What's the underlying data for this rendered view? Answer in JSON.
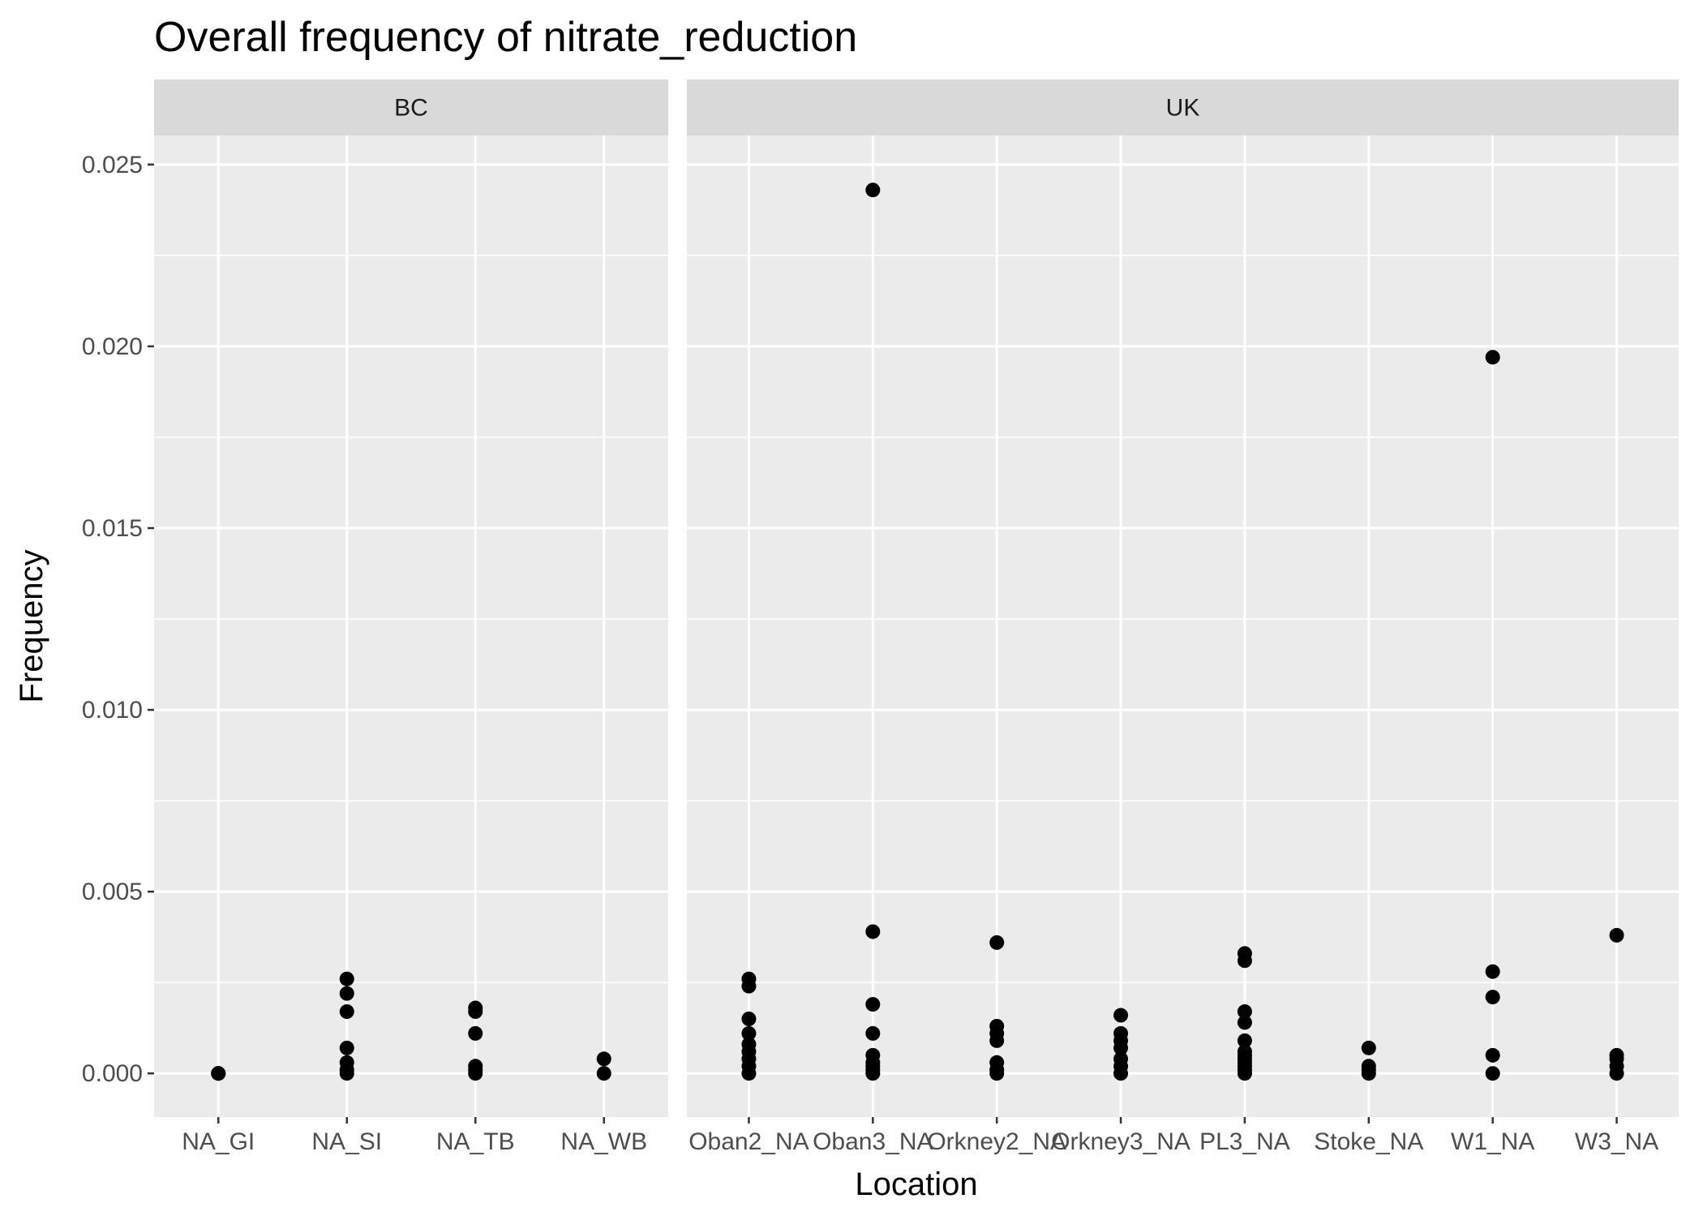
{
  "chart_data": {
    "type": "scatter",
    "title": "Overall frequency of nitrate_reduction",
    "xlabel": "Location",
    "ylabel": "Frequency",
    "ylim": [
      -0.0012,
      0.0258
    ],
    "y_ticks": [
      "0.000",
      "0.005",
      "0.010",
      "0.015",
      "0.020",
      "0.025"
    ],
    "grid": true,
    "facets": [
      {
        "name": "BC",
        "categories": [
          "NA_GI",
          "NA_SI",
          "NA_TB",
          "NA_WB"
        ],
        "points": {
          "NA_GI": [
            0.0,
            0.0,
            0.0
          ],
          "NA_SI": [
            0.0,
            0.0001,
            0.0003,
            0.0007,
            0.0017,
            0.0022,
            0.0026
          ],
          "NA_TB": [
            0.0,
            0.0001,
            0.0002,
            0.0011,
            0.0017,
            0.0018
          ],
          "NA_WB": [
            0.0,
            0.0004
          ]
        }
      },
      {
        "name": "UK",
        "categories": [
          "Oban2_NA",
          "Oban3_NA",
          "Orkney2_NA",
          "Orkney3_NA",
          "PL3_NA",
          "Stoke_NA",
          "W1_NA",
          "W3_NA"
        ],
        "points": {
          "Oban2_NA": [
            0.0,
            0.0002,
            0.0004,
            0.0006,
            0.0008,
            0.0011,
            0.0015,
            0.0024,
            0.0026
          ],
          "Oban3_NA": [
            0.0,
            0.0001,
            0.0002,
            0.0003,
            0.0005,
            0.0011,
            0.0019,
            0.0039,
            0.0243
          ],
          "Orkney2_NA": [
            0.0,
            0.0001,
            0.0003,
            0.0009,
            0.0011,
            0.0013,
            0.0036
          ],
          "Orkney3_NA": [
            0.0,
            0.0002,
            0.0004,
            0.0007,
            0.0009,
            0.0011,
            0.0016
          ],
          "PL3_NA": [
            0.0,
            0.0001,
            0.0002,
            0.0003,
            0.0004,
            0.0005,
            0.0006,
            0.0009,
            0.0014,
            0.0017,
            0.0031,
            0.0033
          ],
          "Stoke_NA": [
            0.0,
            0.0001,
            0.0002,
            0.0007
          ],
          "W1_NA": [
            0.0,
            0.0005,
            0.0021,
            0.0028,
            0.0197
          ],
          "W3_NA": [
            0.0,
            0.0002,
            0.0004,
            0.0005,
            0.0038
          ]
        }
      }
    ]
  },
  "colors": {
    "panel_background": "#ebebeb",
    "strip_background": "#d9d9d9",
    "grid": "#ffffff",
    "point": "#000000",
    "axis_text": "#4d4d4d"
  }
}
